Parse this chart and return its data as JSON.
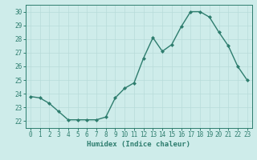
{
  "x": [
    0,
    1,
    2,
    3,
    4,
    5,
    6,
    7,
    8,
    9,
    10,
    11,
    12,
    13,
    14,
    15,
    16,
    17,
    18,
    19,
    20,
    21,
    22,
    23
  ],
  "y": [
    23.8,
    23.7,
    23.3,
    22.7,
    22.1,
    22.1,
    22.1,
    22.1,
    22.3,
    23.7,
    24.4,
    24.8,
    26.6,
    28.1,
    27.1,
    27.6,
    28.9,
    30.0,
    30.0,
    29.6,
    28.5,
    27.5,
    26.0,
    25.0
  ],
  "line_color": "#2e7d6e",
  "marker": "D",
  "marker_size": 2.0,
  "line_width": 1.0,
  "bg_color": "#ceecea",
  "grid_color": "#b8dbd9",
  "xlabel": "Humidex (Indice chaleur)",
  "xlabel_fontsize": 6.5,
  "tick_label_color": "#2e7d6e",
  "axis_color": "#2e7d6e",
  "ylim": [
    21.5,
    30.5
  ],
  "yticks": [
    22,
    23,
    24,
    25,
    26,
    27,
    28,
    29,
    30
  ],
  "xticks": [
    0,
    1,
    2,
    3,
    4,
    5,
    6,
    7,
    8,
    9,
    10,
    11,
    12,
    13,
    14,
    15,
    16,
    17,
    18,
    19,
    20,
    21,
    22,
    23
  ],
  "tick_fontsize": 5.5,
  "xlabel_fontweight": "bold"
}
